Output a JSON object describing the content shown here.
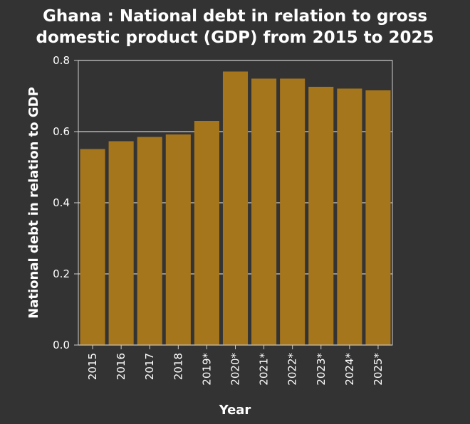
{
  "chart_data": {
    "type": "bar",
    "title": [
      "Ghana : National debt in relation to gross",
      "domestic product (GDP) from 2015 to 2025"
    ],
    "xlabel": "Year",
    "ylabel": "National debt in relation to GDP",
    "categories": [
      "2015",
      "2016",
      "2017",
      "2018",
      "2019*",
      "2020*",
      "2021*",
      "2022*",
      "2023*",
      "2024*",
      "2025*"
    ],
    "values": [
      0.551,
      0.573,
      0.585,
      0.592,
      0.63,
      0.769,
      0.749,
      0.749,
      0.726,
      0.721,
      0.716
    ],
    "ylim": [
      0,
      0.8
    ],
    "yticks": [
      "0.0",
      "0.2",
      "0.4",
      "0.6",
      "0.8"
    ],
    "grid": true,
    "colors": {
      "background": "#333333",
      "bar": "#a6761d",
      "grid": "#cccccc",
      "text": "#ffffff"
    }
  }
}
